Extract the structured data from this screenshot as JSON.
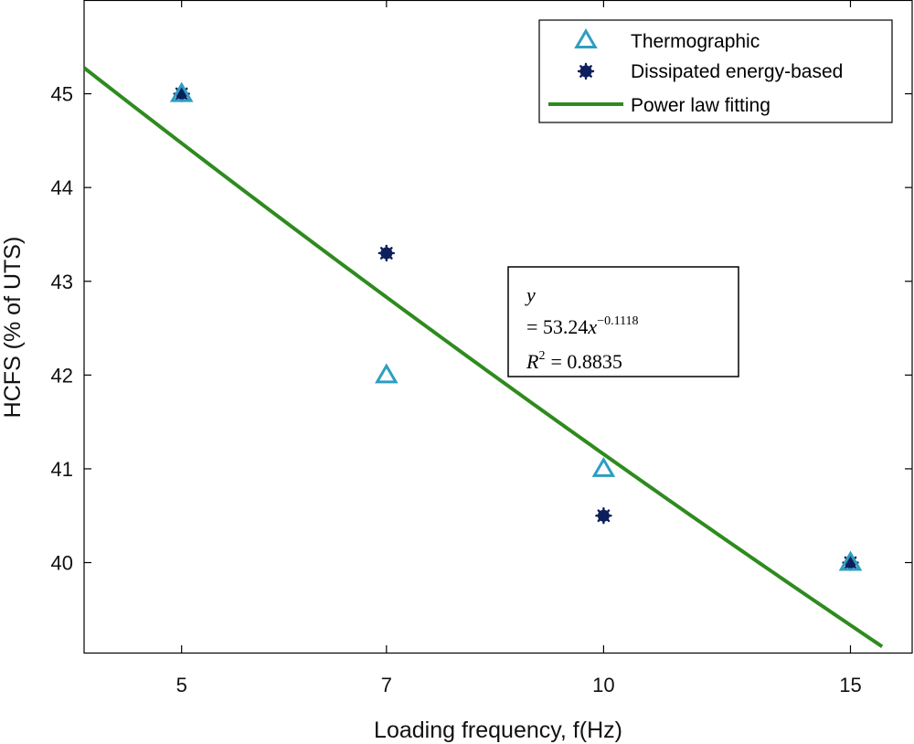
{
  "chart_data": {
    "type": "scatter",
    "xlabel": "Loading frequency, f(Hz)",
    "ylabel": "HCFS (% of UTS)",
    "xscale": "log",
    "xlim": [
      4.26,
      16.6
    ],
    "ylim": [
      39.04,
      46.0
    ],
    "xticks": [
      5,
      7,
      10,
      15
    ],
    "xtick_labels": [
      "5",
      "7",
      "10",
      "15"
    ],
    "yticks": [
      40,
      41,
      42,
      43,
      44,
      45
    ],
    "ytick_labels": [
      "40",
      "41",
      "42",
      "43",
      "44",
      "45"
    ],
    "grid": false,
    "legend_position": "top-right",
    "series": [
      {
        "name": "Thermographic",
        "marker": "triangle-open",
        "color": "#2e9ec0",
        "x": [
          5,
          7,
          10,
          15
        ],
        "y": [
          45.0,
          42.0,
          41.0,
          40.0
        ]
      },
      {
        "name": "Dissipated energy-based",
        "marker": "star",
        "color": "#0d1f5c",
        "x": [
          5,
          7,
          10,
          15
        ],
        "y": [
          45.0,
          43.3,
          40.5,
          40.0
        ]
      },
      {
        "name": "Power law fitting",
        "type": "line",
        "color": "#2e8b1e",
        "coefficient": 53.24,
        "exponent": -0.1118,
        "x_range": [
          4.26,
          15.8
        ]
      }
    ],
    "annotation": {
      "eq_y": "y",
      "eq_line2_prefix": "= 53.24",
      "eq_line2_var": "x",
      "eq_exponent": "−0.1118",
      "r2_label": "R",
      "r2_power": "2",
      "r2_value": "= 0.8835"
    }
  }
}
